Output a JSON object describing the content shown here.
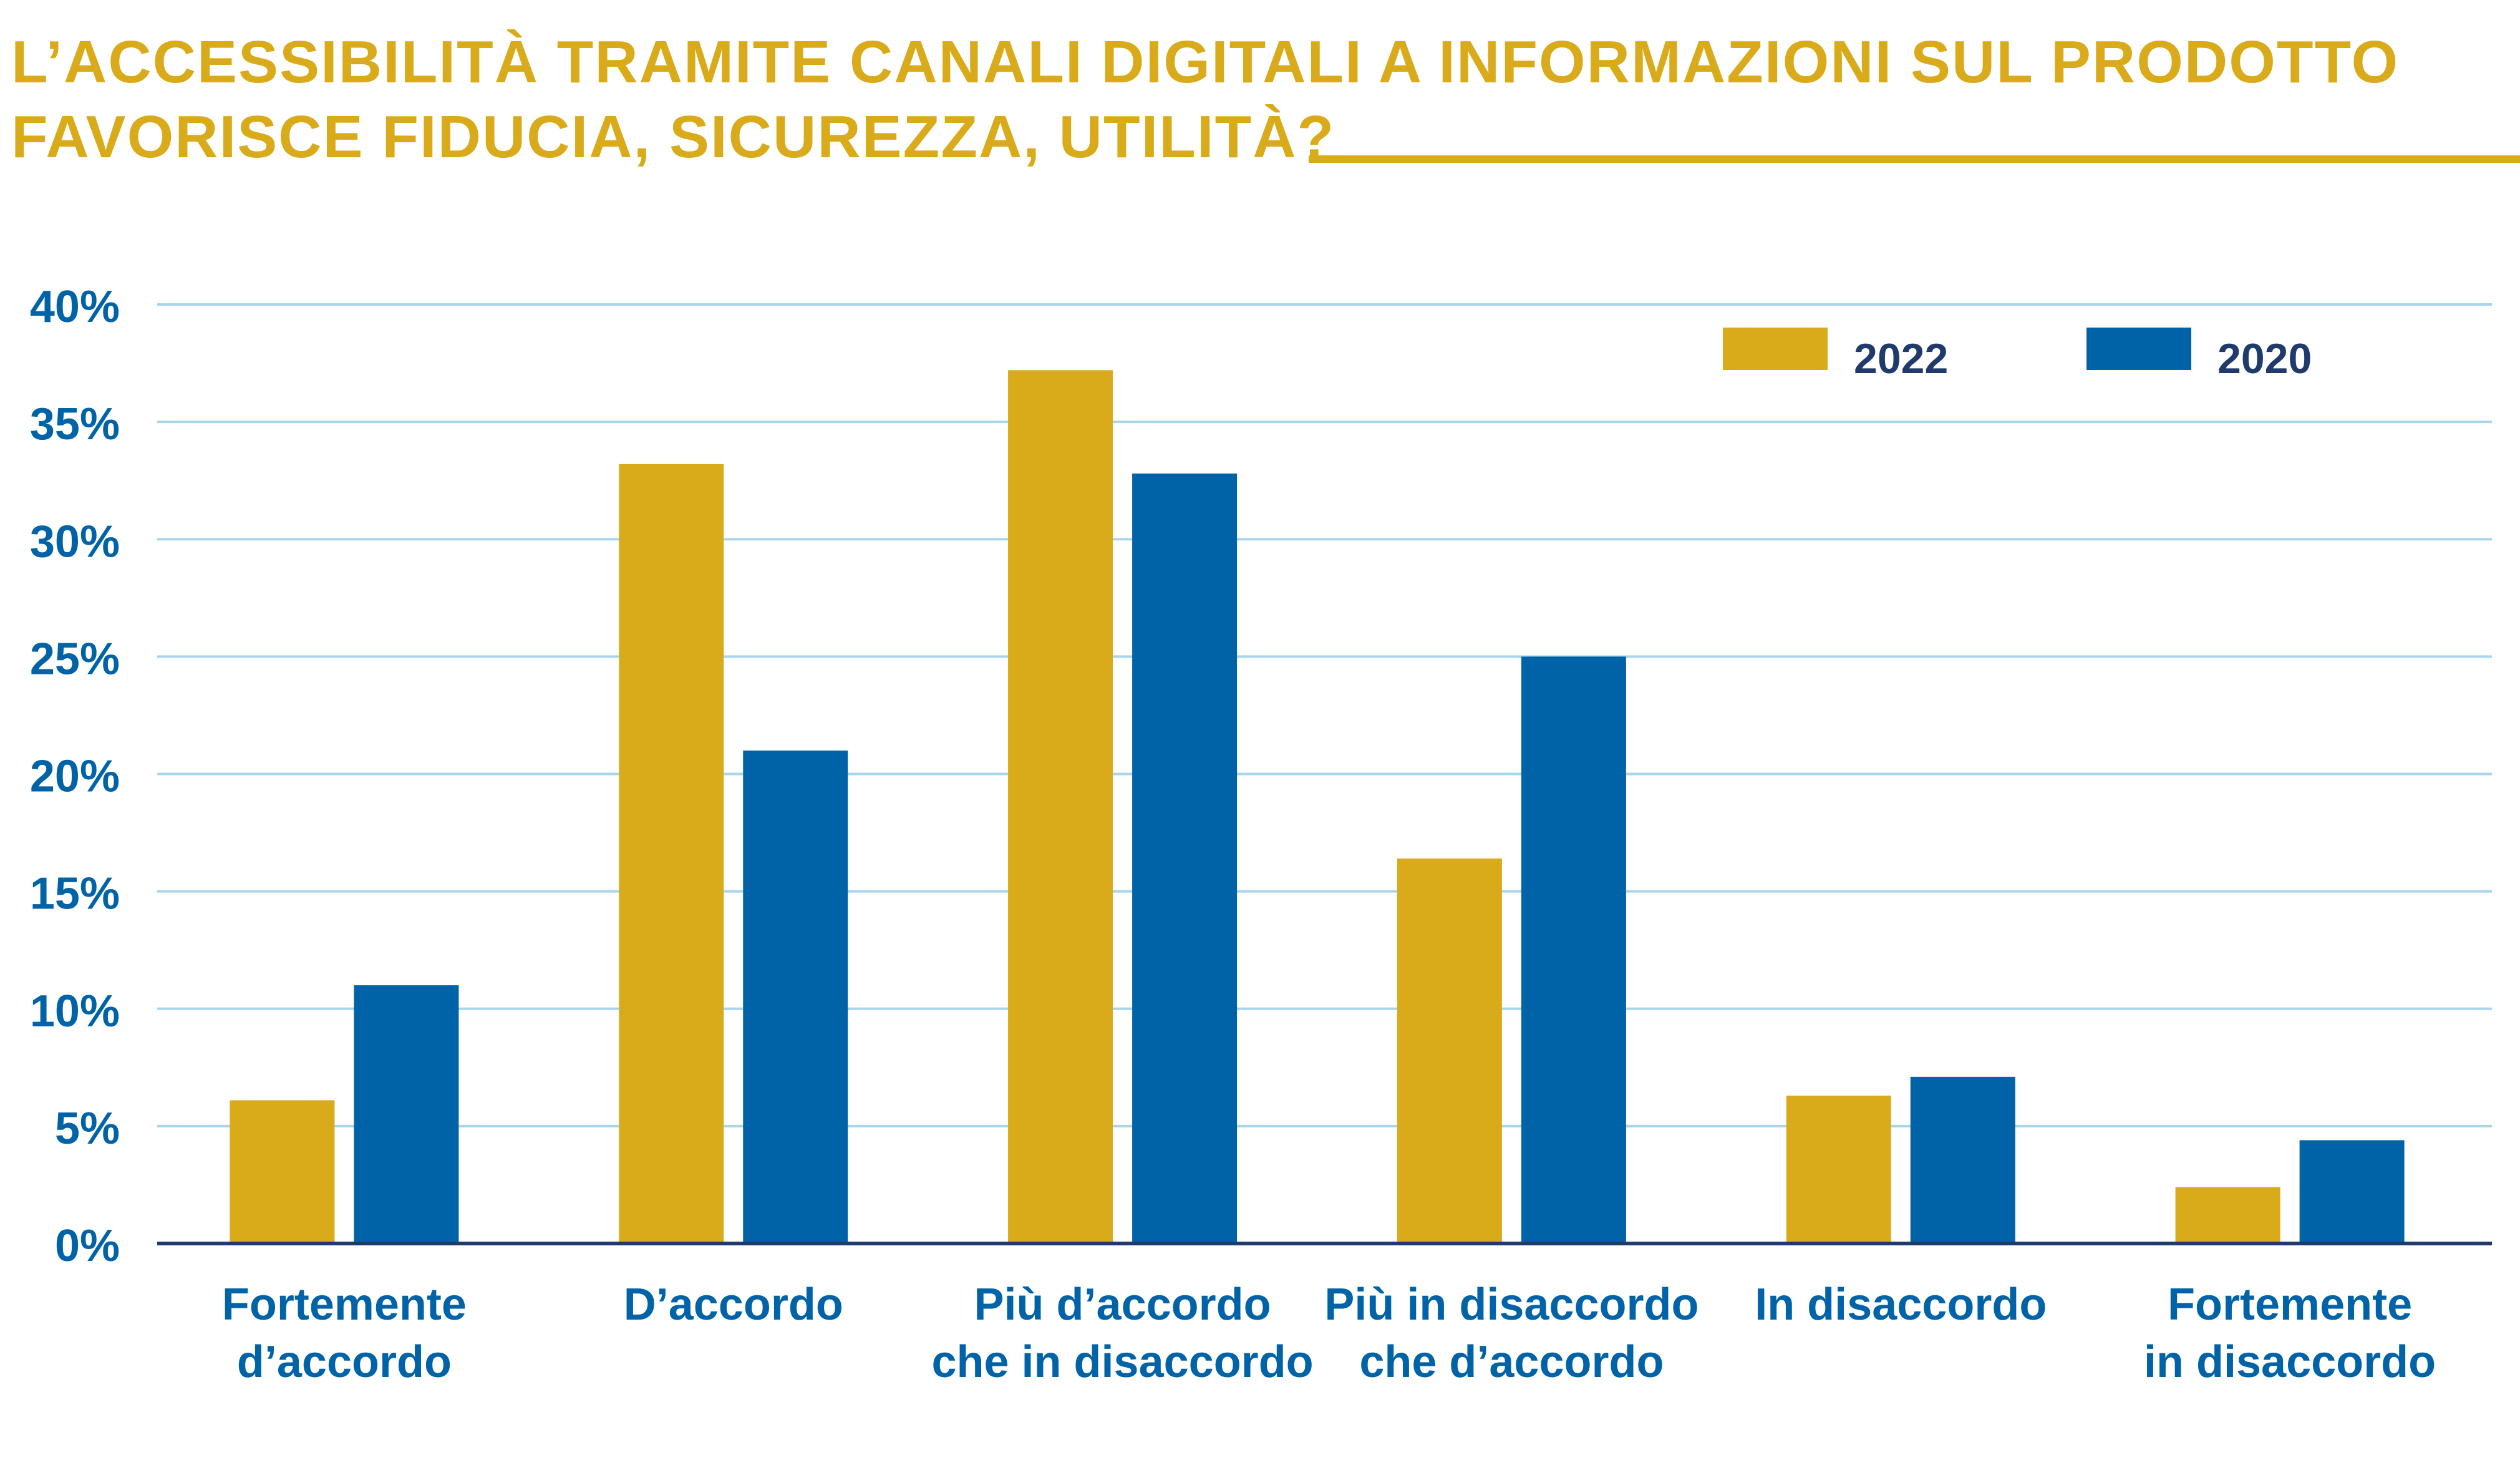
{
  "title": {
    "line1": "L’ACCESSIBILITÀ TRAMITE CANALI DIGITALI A INFORMAZIONI SUL PRODOTTO",
    "line2": "FAVORISCE FIDUCIA, SICUREZZA, UTILITÀ?"
  },
  "colors": {
    "accent": "#d9ab1b",
    "blue": "#0063a8",
    "grid": "#a8d5ec",
    "axis": "#1f3a6b",
    "label": "#0063a8"
  },
  "chart_data": {
    "type": "bar",
    "title": "L’ACCESSIBILITÀ TRAMITE CANALI DIGITALI A INFORMAZIONI SUL PRODOTTO FAVORISCE FIDUCIA, SICUREZZA, UTILITÀ?",
    "categories": [
      [
        "Fortemente",
        "d’accordo"
      ],
      [
        "D’accordo"
      ],
      [
        "Più d’accordo",
        "che in disaccordo"
      ],
      [
        "Più in disaccordo",
        "che d’accordo"
      ],
      [
        "In disaccordo"
      ],
      [
        "Fortemente",
        "in disaccordo"
      ]
    ],
    "series": [
      {
        "name": "2022",
        "color": "#d9ab1b",
        "values": [
          6.1,
          33.2,
          37.2,
          16.4,
          6.3,
          2.4
        ]
      },
      {
        "name": "2020",
        "color": "#0063a8",
        "values": [
          11.0,
          21.0,
          32.8,
          25.0,
          7.1,
          4.4
        ]
      }
    ],
    "ylim": [
      0,
      40
    ],
    "yticks": [
      "0%",
      "5%",
      "10%",
      "15%",
      "20%",
      "25%",
      "30%",
      "35%",
      "40%"
    ],
    "ytick_values": [
      0,
      5,
      10,
      15,
      20,
      25,
      30,
      35,
      40
    ],
    "xlabel": "",
    "ylabel": "",
    "grid": true,
    "legend": "top-right"
  }
}
